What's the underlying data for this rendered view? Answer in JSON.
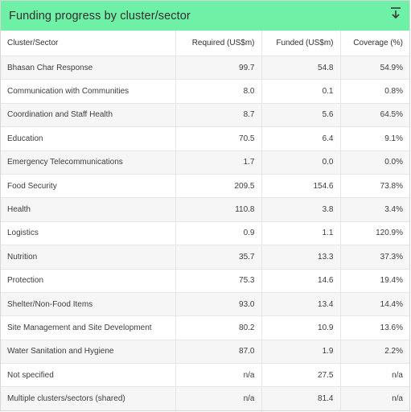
{
  "widget": {
    "title": "Funding progress by cluster/sector",
    "download_icon": "download-icon"
  },
  "table": {
    "columns": [
      "Cluster/Sector",
      "Required (US$m)",
      "Funded (US$m)",
      "Coverage (%)"
    ],
    "rows": [
      [
        "Bhasan Char Response",
        "99.7",
        "54.8",
        "54.9%"
      ],
      [
        "Communication with Communities",
        "8.0",
        "0.1",
        "0.8%"
      ],
      [
        "Coordination and Staff Health",
        "8.7",
        "5.6",
        "64.5%"
      ],
      [
        "Education",
        "70.5",
        "6.4",
        "9.1%"
      ],
      [
        "Emergency Telecommunications",
        "1.7",
        "0.0",
        "0.0%"
      ],
      [
        "Food Security",
        "209.5",
        "154.6",
        "73.8%"
      ],
      [
        "Health",
        "110.8",
        "3.8",
        "3.4%"
      ],
      [
        "Logistics",
        "0.9",
        "1.1",
        "120.9%"
      ],
      [
        "Nutrition",
        "35.7",
        "13.3",
        "37.3%"
      ],
      [
        "Protection",
        "75.3",
        "14.6",
        "19.4%"
      ],
      [
        "Shelter/Non-Food Items",
        "93.0",
        "13.4",
        "14.4%"
      ],
      [
        "Site Management and Site Development",
        "80.2",
        "10.9",
        "13.6%"
      ],
      [
        "Water Sanitation and Hygiene",
        "87.0",
        "1.9",
        "2.2%"
      ],
      [
        "Not specified",
        "n/a",
        "27.5",
        "n/a"
      ],
      [
        "Multiple clusters/sectors (shared)",
        "n/a",
        "81.4",
        "n/a"
      ]
    ]
  },
  "colors": {
    "header_bg": "#6ef0a6",
    "row_alt": "#f6f6f6"
  }
}
